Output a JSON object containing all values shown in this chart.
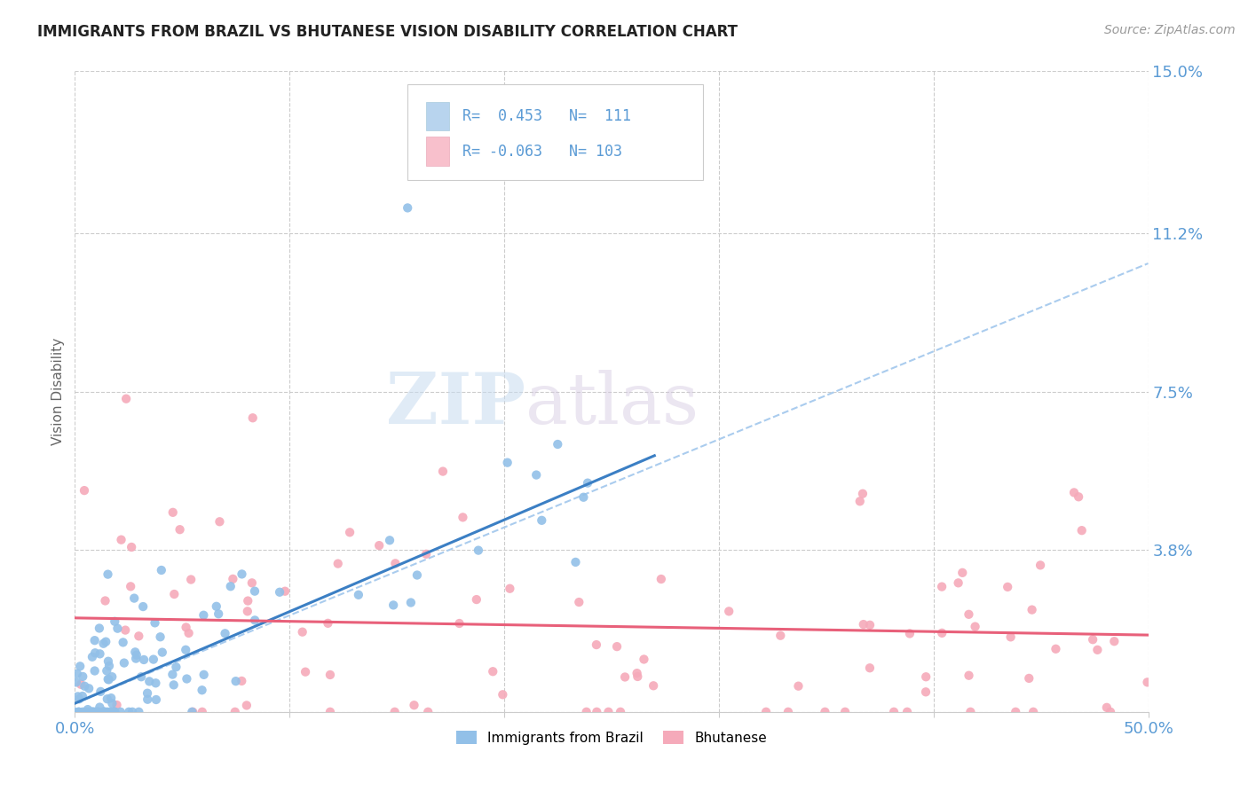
{
  "title": "IMMIGRANTS FROM BRAZIL VS BHUTANESE VISION DISABILITY CORRELATION CHART",
  "source": "Source: ZipAtlas.com",
  "ylabel": "Vision Disability",
  "x_min": 0.0,
  "x_max": 0.5,
  "y_min": 0.0,
  "y_max": 0.15,
  "yticks": [
    0.0,
    0.038,
    0.075,
    0.112,
    0.15
  ],
  "ytick_labels": [
    "",
    "3.8%",
    "7.5%",
    "11.2%",
    "15.0%"
  ],
  "xticks": [
    0.0,
    0.1,
    0.2,
    0.3,
    0.4,
    0.5
  ],
  "xtick_labels": [
    "0.0%",
    "",
    "",
    "",
    "",
    "50.0%"
  ],
  "legend_r1": "R=  0.453",
  "legend_n1": "N=  111",
  "legend_r2": "R= -0.063",
  "legend_n2": "N= 103",
  "brazil_color": "#92C0E8",
  "bhutan_color": "#F5AABA",
  "brazil_line_color": "#3B7FC4",
  "bhutan_line_color": "#E8607A",
  "brazil_dashed_color": "#AACCEE",
  "trend_brazil_x0": 0.0,
  "trend_brazil_y0": 0.002,
  "trend_brazil_x1": 0.27,
  "trend_brazil_y1": 0.06,
  "trend_brazil_dash_x0": 0.0,
  "trend_brazil_dash_y0": 0.002,
  "trend_brazil_dash_x1": 0.5,
  "trend_brazil_dash_y1": 0.105,
  "trend_bhutan_x0": 0.0,
  "trend_bhutan_y0": 0.022,
  "trend_bhutan_x1": 0.5,
  "trend_bhutan_y1": 0.018,
  "watermark_zip": "ZIP",
  "watermark_atlas": "atlas",
  "background_color": "#FFFFFF",
  "grid_color": "#CCCCCC",
  "axis_color": "#5B9BD5",
  "title_color": "#222222"
}
